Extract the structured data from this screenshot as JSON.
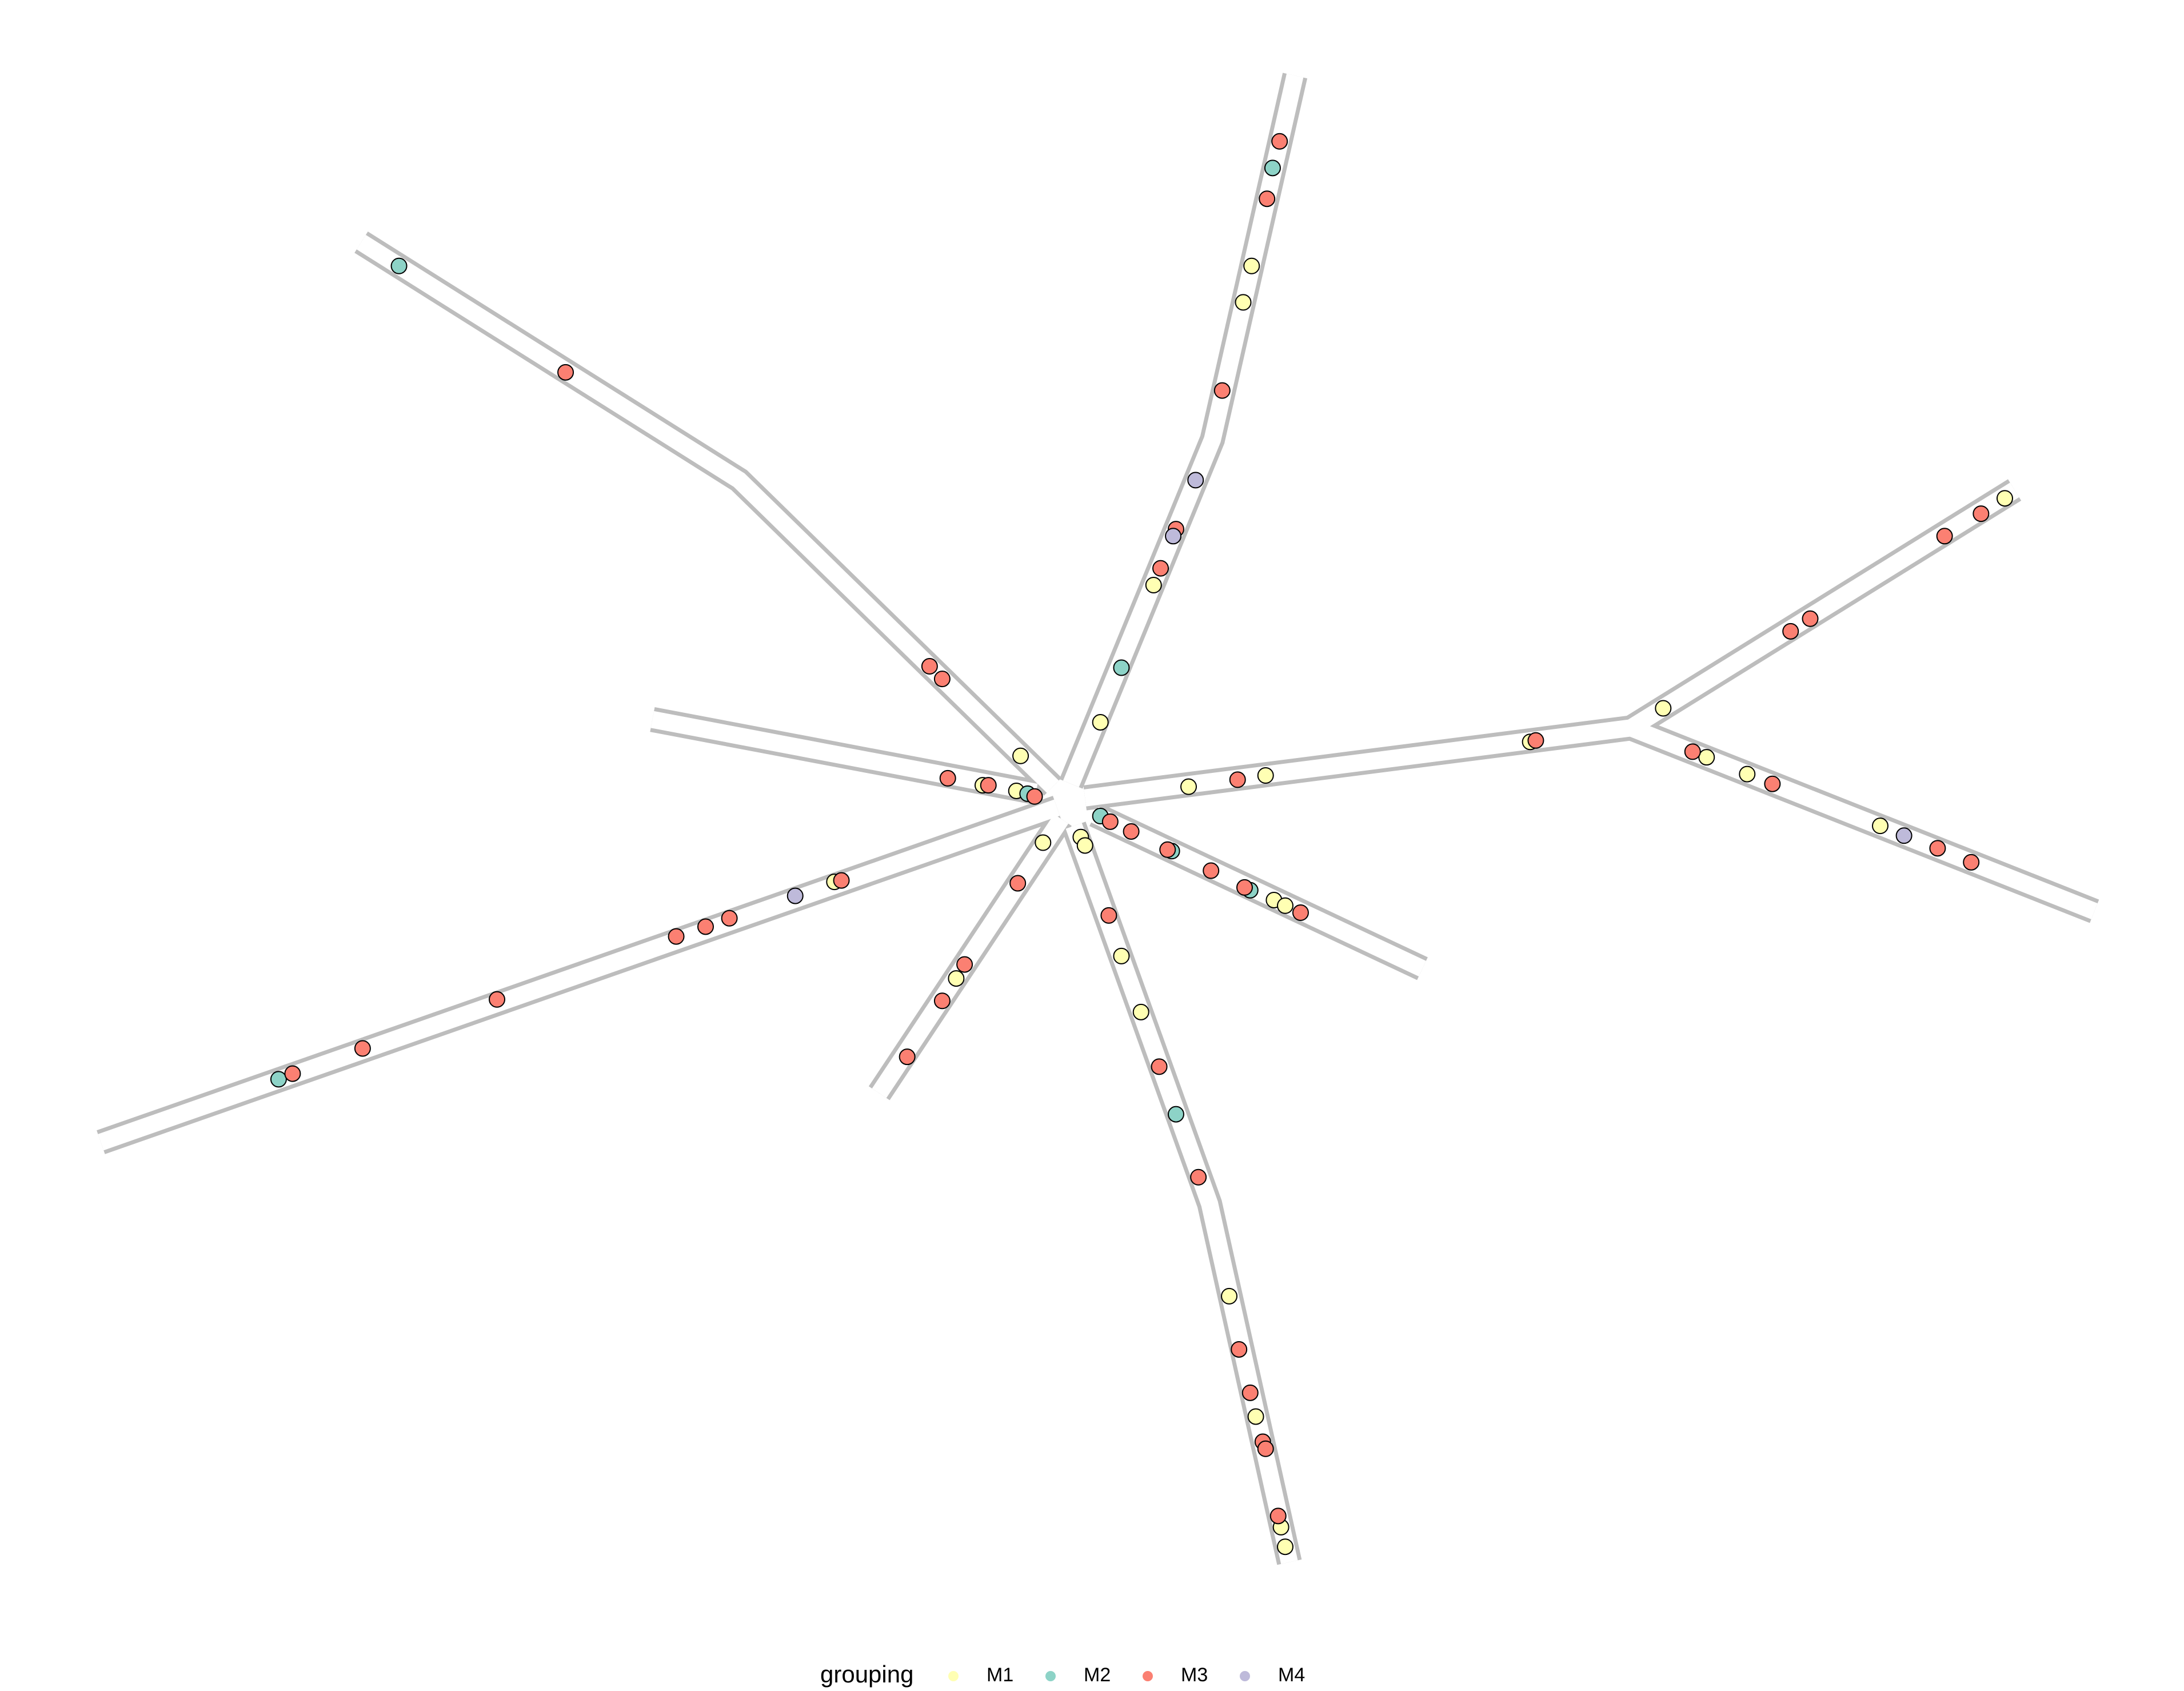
{
  "chart_data": {
    "type": "scatter",
    "legend_title": "grouping",
    "legend": "bottom",
    "xlim": [
      0,
      1560
    ],
    "ylim": [
      1206,
      0
    ],
    "edge_color": "#bdbdbd",
    "edges": [
      {
        "x": [
          258,
          528,
          752
        ],
        "y": [
          173,
          343,
          562
        ]
      },
      {
        "x": [
          466,
          740
        ],
        "y": [
          514,
          566
        ]
      },
      {
        "x": [
          72,
          755
        ],
        "y": [
          816,
          577
        ]
      },
      {
        "x": [
          628,
          758
        ],
        "y": [
          781,
          585
        ]
      },
      {
        "x": [
          767,
          864,
          921
        ],
        "y": [
          590,
          860,
          1116
        ]
      },
      {
        "x": [
          782,
          1016
        ],
        "y": [
          582,
          692
        ]
      },
      {
        "x": [
          765,
          866,
          925
        ],
        "y": [
          560,
          314,
          54
        ]
      },
      {
        "x": [
          775,
          1165,
          1439
        ],
        "y": [
          570,
          520,
          350
        ]
      },
      {
        "x": [
          1165,
          1496
        ],
        "y": [
          520,
          651
        ]
      }
    ],
    "series": [
      {
        "name": "M1",
        "color": "#ffffb3",
        "x": [
          894,
          888,
          824,
          786,
          729,
          702,
          726,
          745,
          772,
          775,
          849,
          904,
          1093,
          1188,
          1219,
          1248,
          1343,
          1432,
          910,
          918,
          683,
          596,
          878,
          897,
          915,
          918,
          815,
          801
        ],
        "values": [
          190,
          216,
          418,
          516,
          540,
          561,
          565,
          602,
          598,
          604,
          562,
          554,
          530,
          506,
          541,
          553,
          590,
          356,
          643,
          647,
          699,
          630,
          926,
          1012,
          1091,
          1105,
          723,
          683
        ]
      },
      {
        "name": "M2",
        "color": "#8dd3c7",
        "x": [
          285,
          909,
          801,
          734,
          786,
          837,
          893,
          840,
          199
        ],
        "values": [
          190,
          120,
          477,
          567,
          583,
          608,
          636,
          796,
          771
        ]
      },
      {
        "name": "M3",
        "color": "#fb8072",
        "x": [
          914,
          905,
          873,
          840,
          829,
          664,
          673,
          677,
          706,
          739,
          793,
          808,
          834,
          865,
          889,
          929,
          884,
          1097,
          1209,
          1266,
          1279,
          1293,
          1389,
          1415,
          1384,
          1408,
          404,
          727,
          689,
          673,
          648,
          601,
          521,
          504,
          483,
          355,
          259,
          209,
          792,
          828,
          856,
          885,
          893,
          902,
          904,
          913
        ],
        "values": [
          101,
          142,
          279,
          378,
          406,
          476,
          485,
          556,
          561,
          569,
          587,
          594,
          607,
          622,
          634,
          652,
          557,
          529,
          537,
          560,
          451,
          442,
          383,
          367,
          606,
          616,
          266,
          631,
          689,
          715,
          755,
          629,
          656,
          662,
          669,
          714,
          749,
          767,
          654,
          762,
          841,
          964,
          995,
          1030,
          1035,
          1083
        ]
      },
      {
        "name": "M4",
        "color": "#bebada",
        "x": [
          854,
          838,
          568,
          1360
        ],
        "values": [
          343,
          383,
          640,
          597
        ]
      }
    ]
  }
}
